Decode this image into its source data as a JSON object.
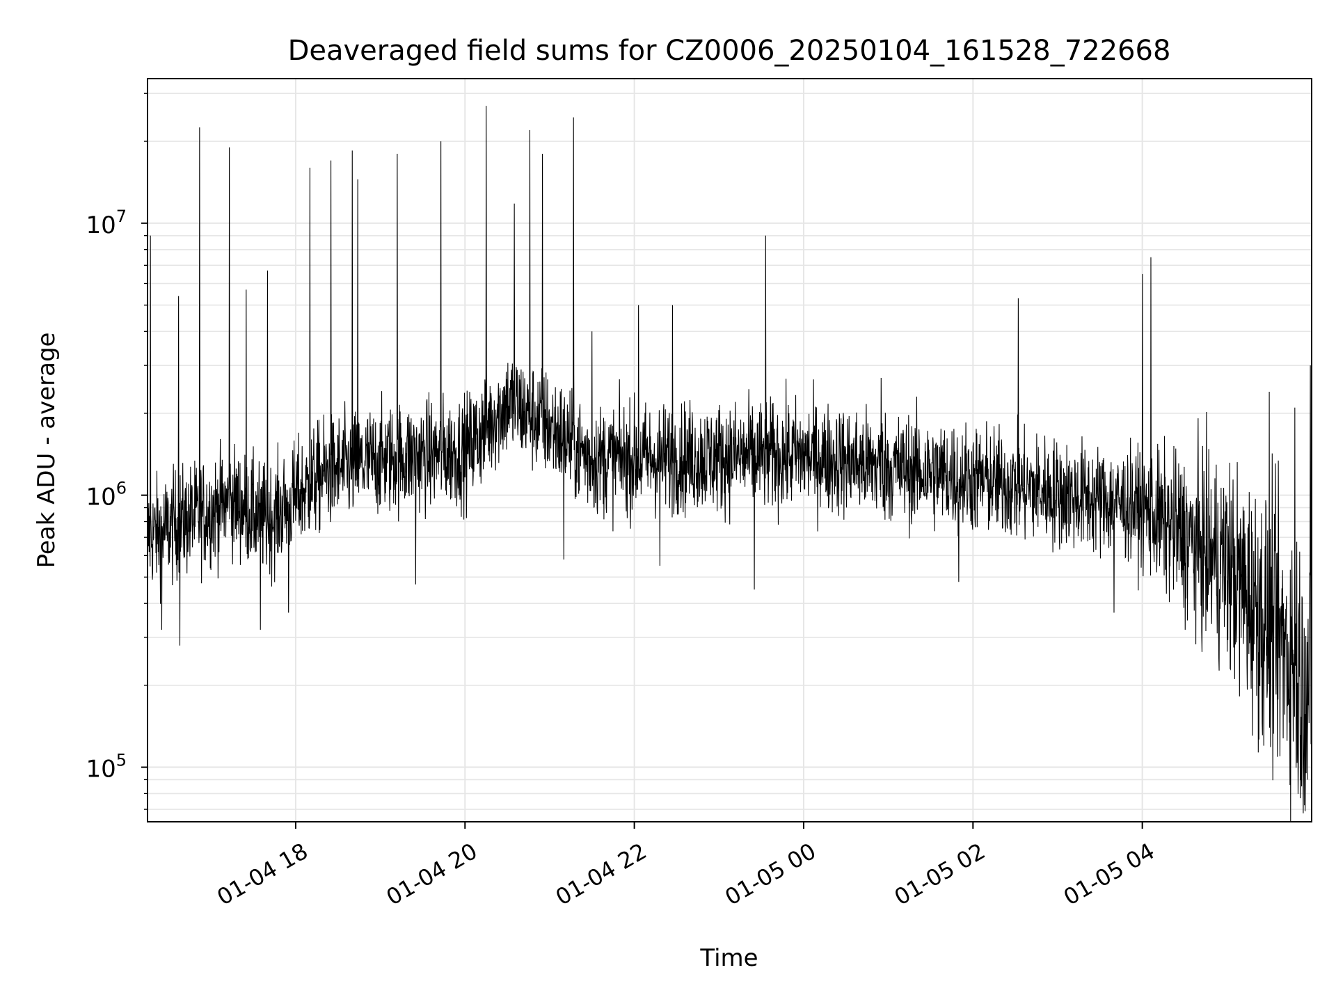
{
  "chart_data": {
    "type": "line",
    "title": "Deaveraged field sums for CZ0006_20250104_161528_722668",
    "xlabel": "Time",
    "ylabel": "Peak ADU - average",
    "xlim": [
      "2025-01-04 16:15",
      "2025-01-05 06:00"
    ],
    "ylim": [
      63000,
      34000000
    ],
    "yscale": "log",
    "grid": true,
    "line_color": "#000000",
    "x_ticks": [
      {
        "value": "2025-01-04 18:00",
        "label": "01-04 18"
      },
      {
        "value": "2025-01-04 20:00",
        "label": "01-04 20"
      },
      {
        "value": "2025-01-04 22:00",
        "label": "01-04 22"
      },
      {
        "value": "2025-01-05 00:00",
        "label": "01-05 00"
      },
      {
        "value": "2025-01-05 02:00",
        "label": "01-05 02"
      },
      {
        "value": "2025-01-05 04:00",
        "label": "01-05 04"
      }
    ],
    "y_ticks": [
      {
        "value": 100000,
        "base": "10",
        "exp": "5"
      },
      {
        "value": 1000000,
        "base": "10",
        "exp": "6"
      },
      {
        "value": 10000000,
        "base": "10",
        "exp": "7"
      }
    ],
    "baseline": [
      {
        "x": "2025-01-04 16:15",
        "y": 700000
      },
      {
        "x": "2025-01-04 17:15",
        "y": 950000
      },
      {
        "x": "2025-01-04 17:40",
        "y": 800000
      },
      {
        "x": "2025-01-04 18:20",
        "y": 1200000
      },
      {
        "x": "2025-01-04 19:00",
        "y": 1350000
      },
      {
        "x": "2025-01-04 20:00",
        "y": 1450000
      },
      {
        "x": "2025-01-04 20:30",
        "y": 2200000
      },
      {
        "x": "2025-01-04 21:00",
        "y": 1800000
      },
      {
        "x": "2025-01-04 21:30",
        "y": 1350000
      },
      {
        "x": "2025-01-05 00:00",
        "y": 1400000
      },
      {
        "x": "2025-01-05 02:00",
        "y": 1150000
      },
      {
        "x": "2025-01-05 04:00",
        "y": 900000
      },
      {
        "x": "2025-01-05 05:00",
        "y": 550000
      },
      {
        "x": "2025-01-05 06:00",
        "y": 200000
      }
    ],
    "spikes": [
      {
        "x": "2025-01-04 16:17",
        "y": 9000000
      },
      {
        "x": "2025-01-04 16:37",
        "y": 5400000
      },
      {
        "x": "2025-01-04 16:52",
        "y": 22500000
      },
      {
        "x": "2025-01-04 17:13",
        "y": 19000000
      },
      {
        "x": "2025-01-04 17:25",
        "y": 5700000
      },
      {
        "x": "2025-01-04 17:40",
        "y": 6700000
      },
      {
        "x": "2025-01-04 18:10",
        "y": 16000000
      },
      {
        "x": "2025-01-04 18:25",
        "y": 17000000
      },
      {
        "x": "2025-01-04 18:40",
        "y": 18500000
      },
      {
        "x": "2025-01-04 18:44",
        "y": 14500000
      },
      {
        "x": "2025-01-04 19:12",
        "y": 18000000
      },
      {
        "x": "2025-01-04 19:43",
        "y": 20000000
      },
      {
        "x": "2025-01-04 20:15",
        "y": 27000000
      },
      {
        "x": "2025-01-04 20:35",
        "y": 11800000
      },
      {
        "x": "2025-01-04 20:46",
        "y": 22000000
      },
      {
        "x": "2025-01-04 20:55",
        "y": 18000000
      },
      {
        "x": "2025-01-04 21:17",
        "y": 24500000
      },
      {
        "x": "2025-01-04 21:30",
        "y": 4000000
      },
      {
        "x": "2025-01-04 22:03",
        "y": 5000000
      },
      {
        "x": "2025-01-04 22:27",
        "y": 5000000
      },
      {
        "x": "2025-01-04 23:33",
        "y": 9000000
      },
      {
        "x": "2025-01-05 00:55",
        "y": 2700000
      },
      {
        "x": "2025-01-05 02:32",
        "y": 5300000
      },
      {
        "x": "2025-01-05 04:00",
        "y": 6500000
      },
      {
        "x": "2025-01-05 04:06",
        "y": 7500000
      },
      {
        "x": "2025-01-05 05:30",
        "y": 2400000
      },
      {
        "x": "2025-01-05 05:48",
        "y": 2100000
      },
      {
        "x": "2025-01-05 05:59",
        "y": 3000000
      }
    ],
    "dips": [
      {
        "x": "2025-01-04 16:25",
        "y": 320000
      },
      {
        "x": "2025-01-04 16:38",
        "y": 280000
      },
      {
        "x": "2025-01-04 17:35",
        "y": 320000
      },
      {
        "x": "2025-01-04 17:55",
        "y": 370000
      },
      {
        "x": "2025-01-04 19:25",
        "y": 470000
      },
      {
        "x": "2025-01-04 21:10",
        "y": 580000
      },
      {
        "x": "2025-01-04 22:18",
        "y": 550000
      },
      {
        "x": "2025-01-04 23:25",
        "y": 450000
      },
      {
        "x": "2025-01-05 01:50",
        "y": 480000
      },
      {
        "x": "2025-01-05 03:40",
        "y": 370000
      },
      {
        "x": "2025-01-05 05:05",
        "y": 300000
      },
      {
        "x": "2025-01-05 05:26",
        "y": 120000
      },
      {
        "x": "2025-01-05 05:53",
        "y": 85000
      },
      {
        "x": "2025-01-05 05:57",
        "y": 90000
      }
    ]
  }
}
